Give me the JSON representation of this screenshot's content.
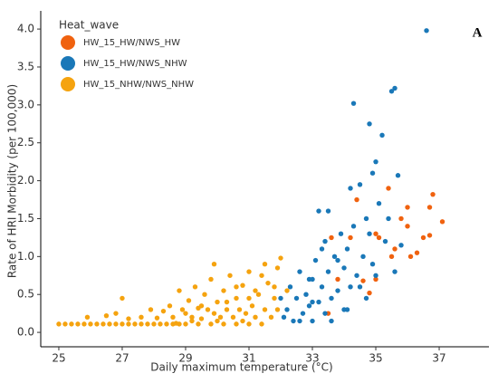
{
  "chart_data": {
    "type": "scatter",
    "xlabel": "Daily maximum temperature (°C)",
    "ylabel": "Rate of HRI Morbidity (per 100,000)",
    "annotation": "A",
    "legend_title": "Heat_wave",
    "legend_position": "top-left",
    "xlim": [
      24.43,
      38.57
    ],
    "ylim": [
      -0.19,
      4.24
    ],
    "xticks": [
      25,
      27,
      29,
      31,
      33,
      35,
      37
    ],
    "yticks": [
      {
        "value": 0,
        "label": "0.0"
      },
      {
        "value": 0.5,
        "label": "0.5"
      },
      {
        "value": 1,
        "label": "1.0"
      },
      {
        "value": 1.5,
        "label": "1.5"
      },
      {
        "value": 2,
        "label": "2.0"
      },
      {
        "value": 2.5,
        "label": "2.5"
      },
      {
        "value": 3,
        "label": "3.0"
      },
      {
        "value": 3.5,
        "label": "3.5"
      },
      {
        "value": 4,
        "label": "4.0"
      }
    ],
    "series": [
      {
        "name": "HW_15_HW/NWS_HW",
        "color": "#f0620f",
        "x": [
          33.6,
          33.8,
          34.2,
          34.4,
          34.6,
          34.8,
          35.0,
          35.1,
          35.4,
          35.5,
          35.6,
          35.8,
          36.0,
          36.0,
          36.1,
          36.3,
          36.5,
          36.7,
          36.8,
          36.7,
          37.1,
          35.0,
          33.5
        ],
        "values": [
          1.25,
          0.7,
          1.25,
          1.75,
          0.68,
          0.52,
          1.3,
          1.25,
          1.9,
          1.0,
          1.1,
          1.5,
          1.65,
          1.4,
          1.0,
          1.05,
          1.25,
          1.65,
          1.82,
          1.28,
          1.46,
          0.7,
          0.25
        ]
      },
      {
        "name": "HW_15_HW/NWS_NHW",
        "color": "#1a78b8",
        "x": [
          32.0,
          32.1,
          32.2,
          32.3,
          32.4,
          32.5,
          32.6,
          32.7,
          32.8,
          32.9,
          33.0,
          33.0,
          33.1,
          33.2,
          33.3,
          33.3,
          33.4,
          33.5,
          33.5,
          33.6,
          33.7,
          33.8,
          33.9,
          34.0,
          34.0,
          34.1,
          34.2,
          34.3,
          34.3,
          34.4,
          34.5,
          34.6,
          34.7,
          34.7,
          34.8,
          34.9,
          35.0,
          35.0,
          35.1,
          35.2,
          35.3,
          35.4,
          35.5,
          35.6,
          35.6,
          35.7,
          35.8,
          34.2,
          34.8,
          34.9,
          36.6,
          33.2,
          33.4,
          33.8,
          32.6,
          32.9,
          33.6,
          34.1,
          34.5,
          33.0
        ],
        "values": [
          0.45,
          0.2,
          0.3,
          0.6,
          0.15,
          0.45,
          0.8,
          0.25,
          0.5,
          0.35,
          0.7,
          0.15,
          0.95,
          0.4,
          0.6,
          1.1,
          0.25,
          0.8,
          1.6,
          0.45,
          1.0,
          0.55,
          1.3,
          0.3,
          0.85,
          1.1,
          0.6,
          1.4,
          3.02,
          0.75,
          1.95,
          1.0,
          1.5,
          0.45,
          1.3,
          0.9,
          2.25,
          0.75,
          1.7,
          2.6,
          1.2,
          1.5,
          3.18,
          3.22,
          0.8,
          2.07,
          1.15,
          1.9,
          2.75,
          2.1,
          3.98,
          1.6,
          1.2,
          0.95,
          0.15,
          0.7,
          0.15,
          0.3,
          0.6,
          0.4
        ]
      },
      {
        "name": "HW_15_NHW/NWS_NHW",
        "color": "#f5a30f",
        "x": [
          25.0,
          25.2,
          25.4,
          25.6,
          25.8,
          26.0,
          26.2,
          26.4,
          26.6,
          26.8,
          27.0,
          27.2,
          27.4,
          27.6,
          27.8,
          28.0,
          28.2,
          28.4,
          28.6,
          28.8,
          29.0,
          29.4,
          29.8,
          30.2,
          30.6,
          31.0,
          31.4,
          25.9,
          26.5,
          26.8,
          27.0,
          27.2,
          27.6,
          27.9,
          28.1,
          28.3,
          28.5,
          28.6,
          28.8,
          28.9,
          29.0,
          29.1,
          29.2,
          29.3,
          29.4,
          29.5,
          29.6,
          29.7,
          29.8,
          29.9,
          29.9,
          30.0,
          30.1,
          30.2,
          30.3,
          30.4,
          30.5,
          30.6,
          30.7,
          30.8,
          30.9,
          31.0,
          31.1,
          31.2,
          31.3,
          31.4,
          31.5,
          31.6,
          31.7,
          31.8,
          31.9,
          31.9,
          31.5,
          29.5,
          30.0,
          30.3,
          30.8,
          31.2,
          31.8,
          29.2,
          28.7,
          30.6,
          31.0,
          32.0,
          32.2
        ],
        "values": [
          0.11,
          0.11,
          0.11,
          0.11,
          0.11,
          0.11,
          0.11,
          0.11,
          0.11,
          0.11,
          0.11,
          0.11,
          0.11,
          0.11,
          0.11,
          0.11,
          0.11,
          0.11,
          0.11,
          0.11,
          0.11,
          0.11,
          0.11,
          0.11,
          0.11,
          0.11,
          0.11,
          0.2,
          0.22,
          0.25,
          0.45,
          0.18,
          0.2,
          0.3,
          0.19,
          0.28,
          0.35,
          0.2,
          0.55,
          0.3,
          0.25,
          0.42,
          0.2,
          0.6,
          0.32,
          0.18,
          0.5,
          0.3,
          0.7,
          0.25,
          0.9,
          0.4,
          0.2,
          0.55,
          0.3,
          0.75,
          0.2,
          0.45,
          0.3,
          0.62,
          0.25,
          0.8,
          0.35,
          0.2,
          0.5,
          0.75,
          0.3,
          0.65,
          0.2,
          0.45,
          0.85,
          0.3,
          0.9,
          0.35,
          0.15,
          0.4,
          0.15,
          0.55,
          0.6,
          0.15,
          0.12,
          0.6,
          0.45,
          0.98,
          0.55
        ]
      }
    ]
  }
}
